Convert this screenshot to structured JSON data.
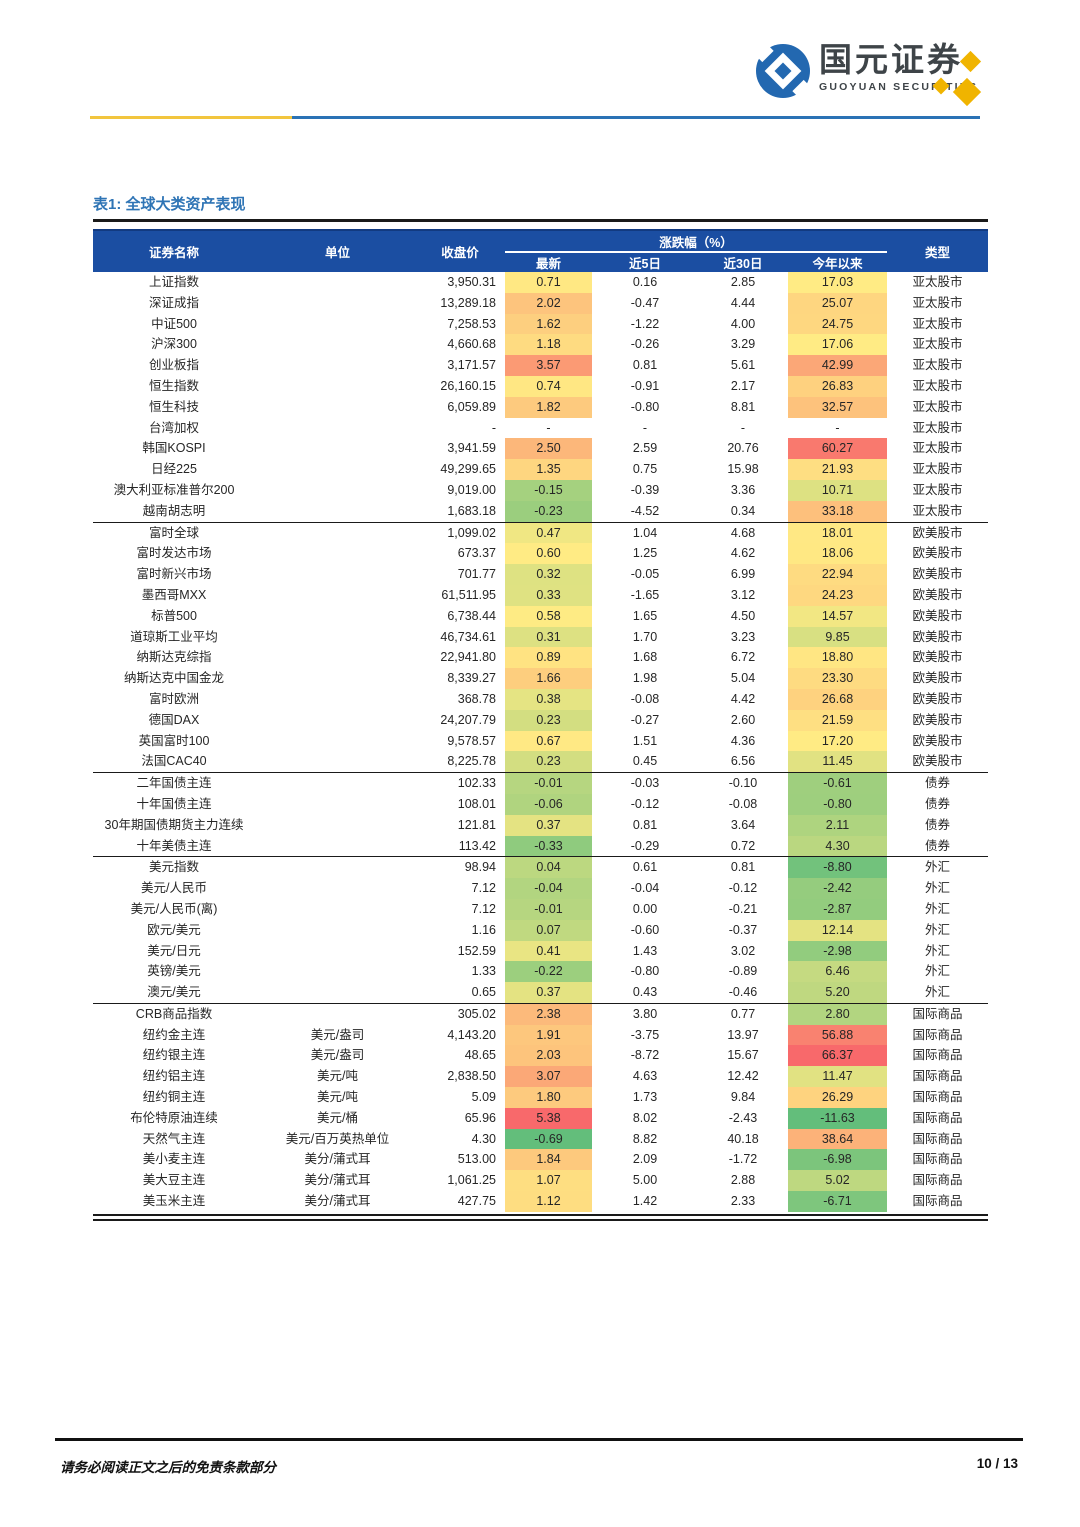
{
  "header": {
    "logo": {
      "cn": "国元证券",
      "en": "GUOYUAN SECURITIES"
    }
  },
  "colors": {
    "band_navy": "#1B4EA2",
    "title_blue": "#2E74B5",
    "rule_yellow": "#F2C53E",
    "rule_blue": "#2A72B5",
    "logo_blue": "#2368B0",
    "logo_gold": "#F0B400"
  },
  "heat_scale": {
    "low": "#63BE7B",
    "mid": "#FFEB84",
    "high": "#F8696B"
  },
  "table": {
    "title": "表1: 全球大类资产表现",
    "columns": {
      "name": "证券名称",
      "unit": "单位",
      "close": "收盘价",
      "pct_group": "涨跌幅（%）",
      "latest": "最新",
      "d5": "近5日",
      "d30": "近30日",
      "ytd": "今年以来",
      "type": "类型"
    },
    "groups": [
      {
        "type": "亚太股市",
        "rows": [
          {
            "name": "上证指数",
            "unit": "",
            "close": "3,950.31",
            "pct": [
              "0.71",
              "0.16",
              "2.85",
              "17.03"
            ]
          },
          {
            "name": "深证成指",
            "unit": "",
            "close": "13,289.18",
            "pct": [
              "2.02",
              "-0.47",
              "4.44",
              "25.07"
            ]
          },
          {
            "name": "中证500",
            "unit": "",
            "close": "7,258.53",
            "pct": [
              "1.62",
              "-1.22",
              "4.00",
              "24.75"
            ]
          },
          {
            "name": "沪深300",
            "unit": "",
            "close": "4,660.68",
            "pct": [
              "1.18",
              "-0.26",
              "3.29",
              "17.06"
            ]
          },
          {
            "name": "创业板指",
            "unit": "",
            "close": "3,171.57",
            "pct": [
              "3.57",
              "0.81",
              "5.61",
              "42.99"
            ]
          },
          {
            "name": "恒生指数",
            "unit": "",
            "close": "26,160.15",
            "pct": [
              "0.74",
              "-0.91",
              "2.17",
              "26.83"
            ]
          },
          {
            "name": "恒生科技",
            "unit": "",
            "close": "6,059.89",
            "pct": [
              "1.82",
              "-0.80",
              "8.81",
              "32.57"
            ]
          },
          {
            "name": "台湾加权",
            "unit": "",
            "close": "-",
            "pct": [
              "-",
              "-",
              "-",
              "-"
            ]
          },
          {
            "name": "韩国KOSPI",
            "unit": "",
            "close": "3,941.59",
            "pct": [
              "2.50",
              "2.59",
              "20.76",
              "60.27"
            ]
          },
          {
            "name": "日经225",
            "unit": "",
            "close": "49,299.65",
            "pct": [
              "1.35",
              "0.75",
              "15.98",
              "21.93"
            ]
          },
          {
            "name": "澳大利亚标准普尔200",
            "unit": "",
            "close": "9,019.00",
            "pct": [
              "-0.15",
              "-0.39",
              "3.36",
              "10.71"
            ]
          },
          {
            "name": "越南胡志明",
            "unit": "",
            "close": "1,683.18",
            "pct": [
              "-0.23",
              "-4.52",
              "0.34",
              "33.18"
            ]
          }
        ]
      },
      {
        "type": "欧美股市",
        "rows": [
          {
            "name": "富时全球",
            "unit": "",
            "close": "1,099.02",
            "pct": [
              "0.47",
              "1.04",
              "4.68",
              "18.01"
            ]
          },
          {
            "name": "富时发达市场",
            "unit": "",
            "close": "673.37",
            "pct": [
              "0.60",
              "1.25",
              "4.62",
              "18.06"
            ]
          },
          {
            "name": "富时新兴市场",
            "unit": "",
            "close": "701.77",
            "pct": [
              "0.32",
              "-0.05",
              "6.99",
              "22.94"
            ]
          },
          {
            "name": "墨西哥MXX",
            "unit": "",
            "close": "61,511.95",
            "pct": [
              "0.33",
              "-1.65",
              "3.12",
              "24.23"
            ]
          },
          {
            "name": "标普500",
            "unit": "",
            "close": "6,738.44",
            "pct": [
              "0.58",
              "1.65",
              "4.50",
              "14.57"
            ]
          },
          {
            "name": "道琼斯工业平均",
            "unit": "",
            "close": "46,734.61",
            "pct": [
              "0.31",
              "1.70",
              "3.23",
              "9.85"
            ]
          },
          {
            "name": "纳斯达克综指",
            "unit": "",
            "close": "22,941.80",
            "pct": [
              "0.89",
              "1.68",
              "6.72",
              "18.80"
            ]
          },
          {
            "name": "纳斯达克中国金龙",
            "unit": "",
            "close": "8,339.27",
            "pct": [
              "1.66",
              "1.98",
              "5.04",
              "23.30"
            ]
          },
          {
            "name": "富时欧洲",
            "unit": "",
            "close": "368.78",
            "pct": [
              "0.38",
              "-0.08",
              "4.42",
              "26.68"
            ]
          },
          {
            "name": "德国DAX",
            "unit": "",
            "close": "24,207.79",
            "pct": [
              "0.23",
              "-0.27",
              "2.60",
              "21.59"
            ]
          },
          {
            "name": "英国富时100",
            "unit": "",
            "close": "9,578.57",
            "pct": [
              "0.67",
              "1.51",
              "4.36",
              "17.20"
            ]
          },
          {
            "name": "法国CAC40",
            "unit": "",
            "close": "8,225.78",
            "pct": [
              "0.23",
              "0.45",
              "6.56",
              "11.45"
            ]
          }
        ]
      },
      {
        "type": "债券",
        "rows": [
          {
            "name": "二年国债主连",
            "unit": "",
            "close": "102.33",
            "pct": [
              "-0.01",
              "-0.03",
              "-0.10",
              "-0.61"
            ]
          },
          {
            "name": "十年国债主连",
            "unit": "",
            "close": "108.01",
            "pct": [
              "-0.06",
              "-0.12",
              "-0.08",
              "-0.80"
            ]
          },
          {
            "name": "30年期国债期货主力连续",
            "unit": "",
            "close": "121.81",
            "pct": [
              "0.37",
              "0.81",
              "3.64",
              "2.11"
            ]
          },
          {
            "name": "十年美债主连",
            "unit": "",
            "close": "113.42",
            "pct": [
              "-0.33",
              "-0.29",
              "0.72",
              "4.30"
            ]
          }
        ]
      },
      {
        "type": "外汇",
        "rows": [
          {
            "name": "美元指数",
            "unit": "",
            "close": "98.94",
            "pct": [
              "0.04",
              "0.61",
              "0.81",
              "-8.80"
            ]
          },
          {
            "name": "美元/人民币",
            "unit": "",
            "close": "7.12",
            "pct": [
              "-0.04",
              "-0.04",
              "-0.12",
              "-2.42"
            ]
          },
          {
            "name": "美元/人民币(离)",
            "unit": "",
            "close": "7.12",
            "pct": [
              "-0.01",
              "0.00",
              "-0.21",
              "-2.87"
            ]
          },
          {
            "name": "欧元/美元",
            "unit": "",
            "close": "1.16",
            "pct": [
              "0.07",
              "-0.60",
              "-0.37",
              "12.14"
            ]
          },
          {
            "name": "美元/日元",
            "unit": "",
            "close": "152.59",
            "pct": [
              "0.41",
              "1.43",
              "3.02",
              "-2.98"
            ]
          },
          {
            "name": "英镑/美元",
            "unit": "",
            "close": "1.33",
            "pct": [
              "-0.22",
              "-0.80",
              "-0.89",
              "6.46"
            ]
          },
          {
            "name": "澳元/美元",
            "unit": "",
            "close": "0.65",
            "pct": [
              "0.37",
              "0.43",
              "-0.46",
              "5.20"
            ]
          }
        ]
      },
      {
        "type": "国际商品",
        "rows": [
          {
            "name": "CRB商品指数",
            "unit": "",
            "close": "305.02",
            "pct": [
              "2.38",
              "3.80",
              "0.77",
              "2.80"
            ]
          },
          {
            "name": "纽约金主连",
            "unit": "美元/盎司",
            "close": "4,143.20",
            "pct": [
              "1.91",
              "-3.75",
              "13.97",
              "56.88"
            ]
          },
          {
            "name": "纽约银主连",
            "unit": "美元/盎司",
            "close": "48.65",
            "pct": [
              "2.03",
              "-8.72",
              "15.67",
              "66.37"
            ]
          },
          {
            "name": "纽约铝主连",
            "unit": "美元/吨",
            "close": "2,838.50",
            "pct": [
              "3.07",
              "4.63",
              "12.42",
              "11.47"
            ]
          },
          {
            "name": "纽约铜主连",
            "unit": "美元/吨",
            "close": "5.09",
            "pct": [
              "1.80",
              "1.73",
              "9.84",
              "26.29"
            ]
          },
          {
            "name": "布伦特原油连续",
            "unit": "美元/桶",
            "close": "65.96",
            "pct": [
              "5.38",
              "8.02",
              "-2.43",
              "-11.63"
            ]
          },
          {
            "name": "天然气主连",
            "unit": "美元/百万英热单位",
            "close": "4.30",
            "pct": [
              "-0.69",
              "8.82",
              "40.18",
              "38.64"
            ]
          },
          {
            "name": "美小麦主连",
            "unit": "美分/蒲式耳",
            "close": "513.00",
            "pct": [
              "1.84",
              "2.09",
              "-1.72",
              "-6.98"
            ]
          },
          {
            "name": "美大豆主连",
            "unit": "美分/蒲式耳",
            "close": "1,061.25",
            "pct": [
              "1.07",
              "5.00",
              "2.88",
              "5.02"
            ]
          },
          {
            "name": "美玉米主连",
            "unit": "美分/蒲式耳",
            "close": "427.75",
            "pct": [
              "1.12",
              "1.42",
              "2.33",
              "-6.71"
            ]
          }
        ]
      }
    ]
  },
  "footer": {
    "disclaimer": "请务必阅读正文之后的免责条款部分",
    "page": "10 / 13"
  }
}
